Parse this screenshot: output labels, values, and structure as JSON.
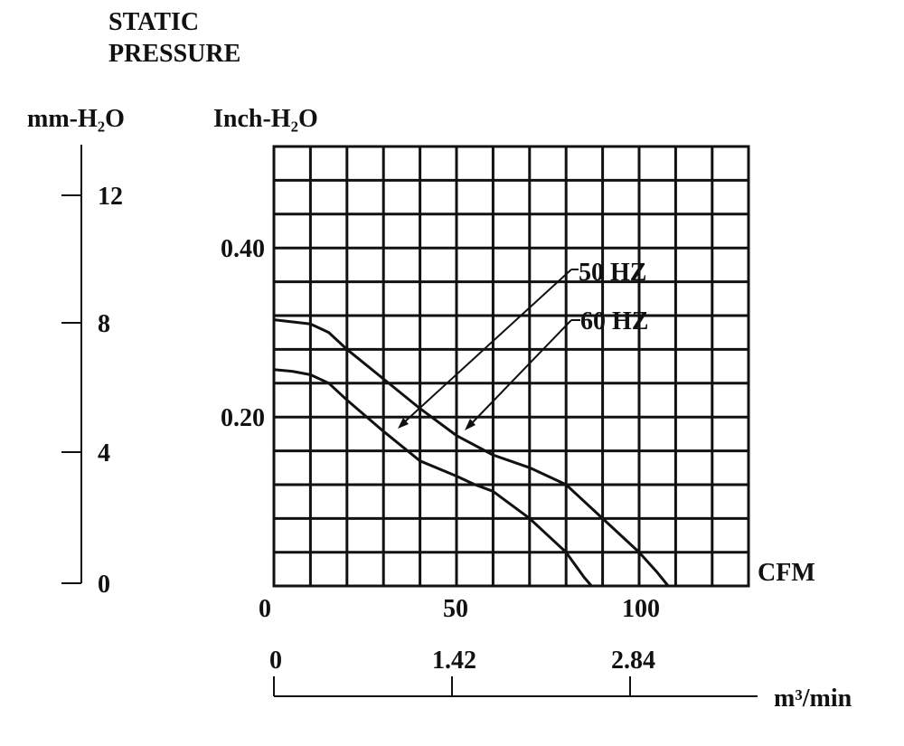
{
  "chart_data": {
    "type": "line",
    "title": "STATIC PRESSURE",
    "title_lines": [
      "STATIC",
      "PRESSURE"
    ],
    "left_axis": {
      "label": "mm-H₂O",
      "ticks": [
        "12",
        "8",
        "4",
        "0"
      ],
      "tick_values": [
        12,
        8,
        4,
        0
      ]
    },
    "y_axis": {
      "label": "Inch-H₂O",
      "ticks": [
        "0.40",
        "0.20"
      ],
      "tick_values": [
        0.4,
        0.2
      ],
      "range": [
        0,
        0.52
      ]
    },
    "x_axis": {
      "label": "CFM",
      "ticks": [
        "0",
        "50",
        "100"
      ],
      "tick_values": [
        0,
        50,
        100
      ],
      "range": [
        0,
        130
      ]
    },
    "x2_axis": {
      "label": "m³/min",
      "ticks": [
        "0",
        "1.42",
        "2.84"
      ]
    },
    "grid": true,
    "series": [
      {
        "name": "50 HZ",
        "x": [
          0,
          5,
          10,
          15,
          20,
          30,
          40,
          50,
          55,
          60,
          70,
          75,
          80,
          85,
          87
        ],
        "y": [
          0.256,
          0.254,
          0.25,
          0.24,
          0.22,
          0.183,
          0.148,
          0.13,
          0.12,
          0.112,
          0.08,
          0.06,
          0.04,
          0.01,
          0
        ]
      },
      {
        "name": "60 HZ",
        "x": [
          0,
          10,
          15,
          20,
          30,
          40,
          50,
          60,
          70,
          80,
          85,
          90,
          100,
          105,
          108
        ],
        "y": [
          0.315,
          0.31,
          0.3,
          0.28,
          0.245,
          0.21,
          0.178,
          0.155,
          0.14,
          0.12,
          0.1,
          0.08,
          0.04,
          0.016,
          0
        ]
      }
    ]
  }
}
